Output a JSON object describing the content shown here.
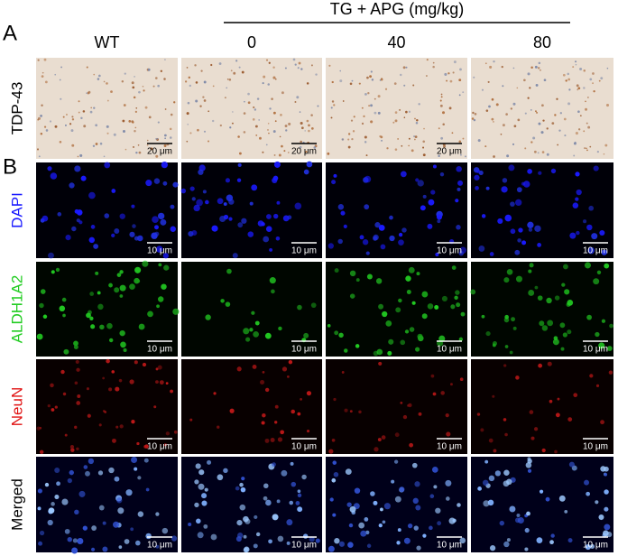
{
  "panels": {
    "a": "A",
    "b": "B"
  },
  "header": {
    "group": "TG + APG (mg/kg)",
    "columns": [
      "WT",
      "0",
      "40",
      "80"
    ]
  },
  "rows": [
    {
      "label": "TDP-43",
      "scale_bars": [
        "20 μm",
        "20 μm",
        "20 μm"
      ]
    },
    {
      "label": "DAPI",
      "scale_bars": [
        "10 μm",
        "10 μm",
        "10 μm",
        "10 μm"
      ]
    },
    {
      "label": "ALDH1A2",
      "scale_bars": [
        "10 μm",
        "10 μm",
        "10 μm",
        "10 μm"
      ]
    },
    {
      "label": "NeuN",
      "scale_bars": [
        "10 μm",
        "10 μm",
        "10 μm",
        "10 μm"
      ]
    },
    {
      "label": "Merged",
      "scale_bars": [
        "10 μm",
        "10 μm",
        "10 μm",
        "10 μm"
      ]
    }
  ]
}
